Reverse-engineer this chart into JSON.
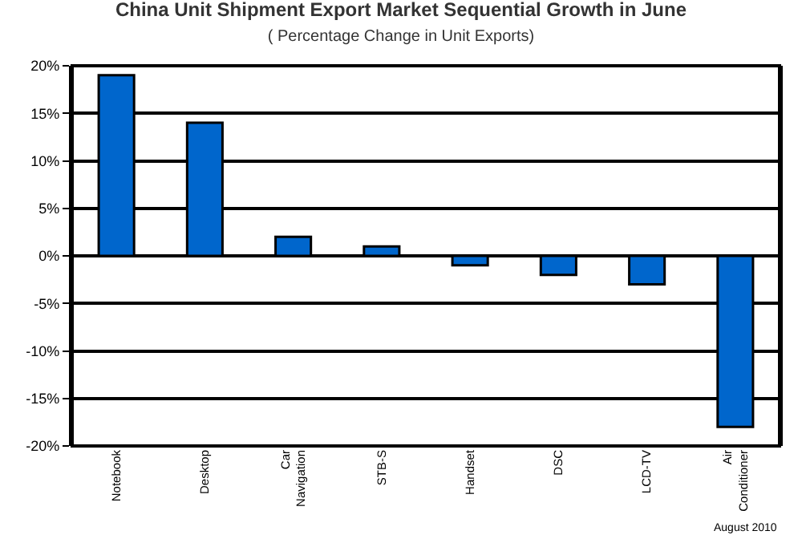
{
  "chart_data": {
    "type": "bar",
    "title": "China Unit Shipment Export Market Sequential Growth in June",
    "subtitle": "( Percentage Change in Unit Exports)",
    "categories": [
      "Notebook",
      "Desktop",
      "Car Navigation",
      "STB-S",
      "Handset",
      "DSC",
      "LCD-TV",
      "Air Conditioner"
    ],
    "values": [
      19,
      14,
      2,
      1,
      -1,
      -2,
      -3,
      -18
    ],
    "color": "#0066cc",
    "ylim": [
      -20,
      20
    ],
    "yticks": [
      {
        "value": -20,
        "label": "-20%"
      },
      {
        "value": -15,
        "label": "-15%"
      },
      {
        "value": -10,
        "label": "-10%"
      },
      {
        "value": -5,
        "label": "-5%"
      },
      {
        "value": 0,
        "label": "0%"
      },
      {
        "value": 5,
        "label": "5%"
      },
      {
        "value": 10,
        "label": "10%"
      },
      {
        "value": 15,
        "label": "15%"
      },
      {
        "value": 20,
        "label": "20%"
      }
    ],
    "grid": "y",
    "legend": false,
    "annotations": [
      "August 2010"
    ]
  }
}
